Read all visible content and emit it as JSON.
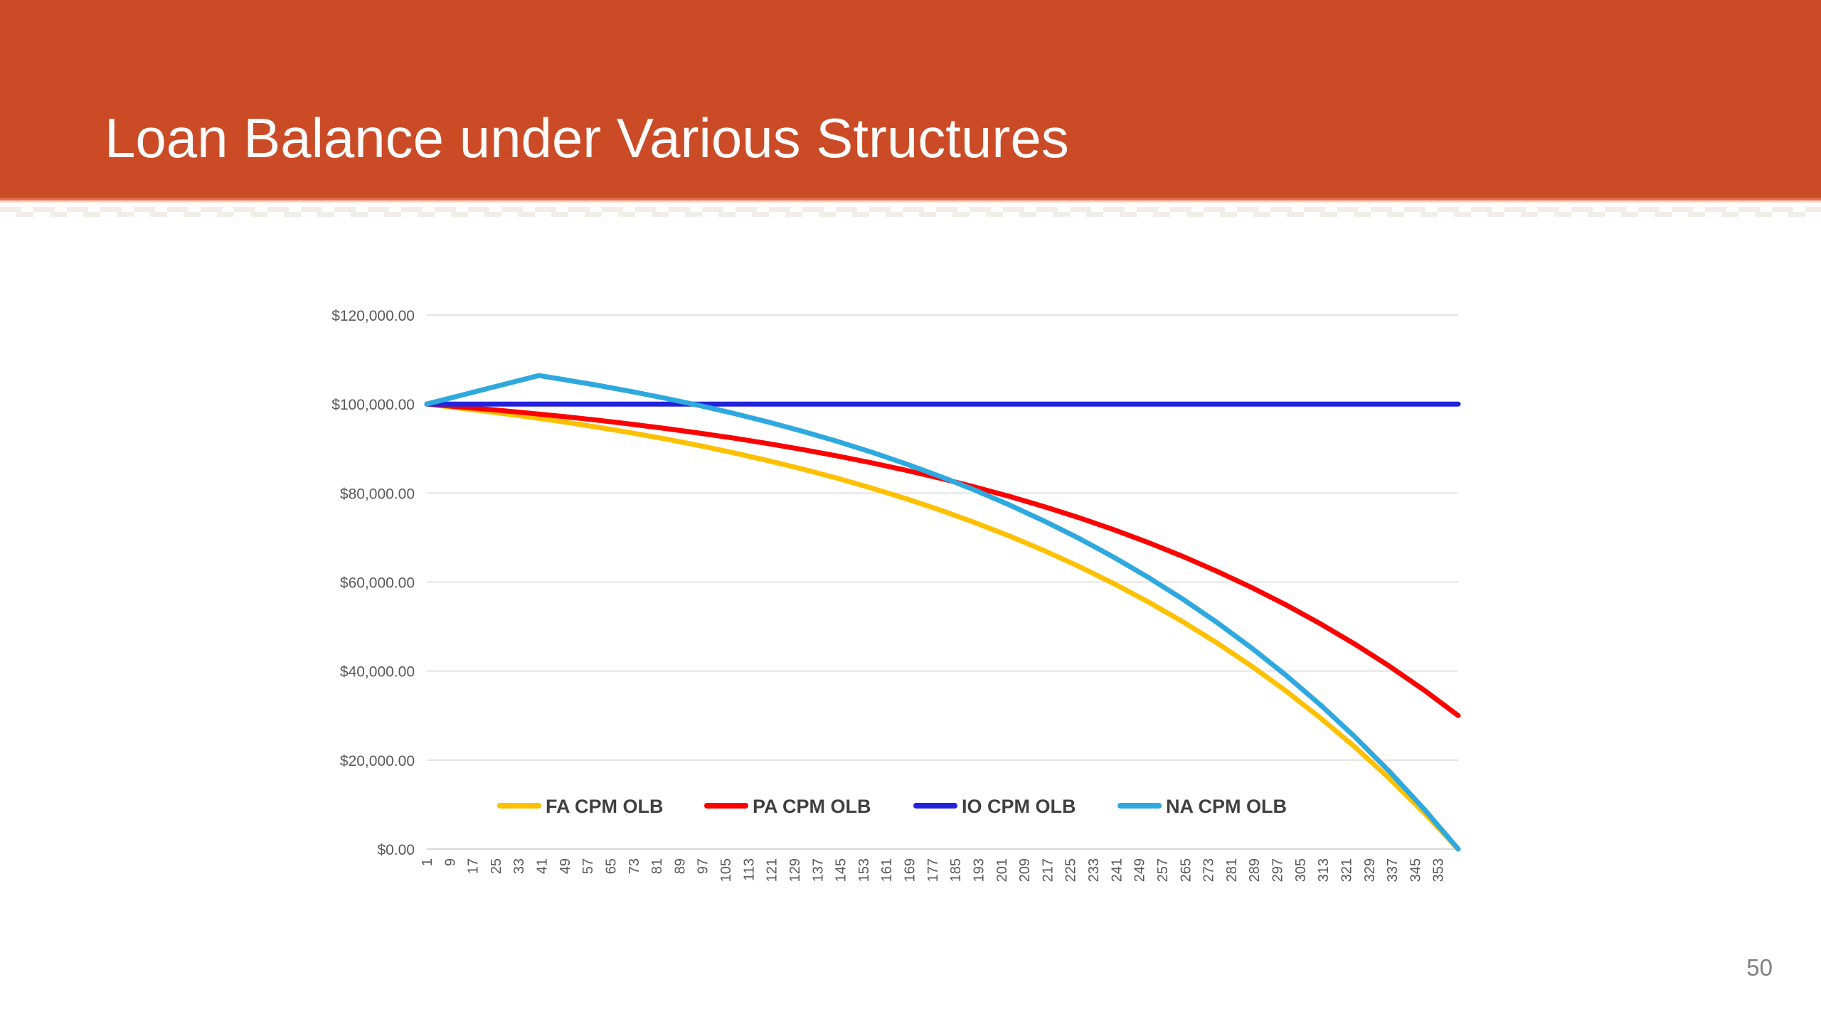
{
  "slide": {
    "title": "Loan Balance under Various Structures",
    "page_number": "50",
    "banner_color": "#CB4B26",
    "banner_accent_color": "#DF6C48"
  },
  "chart_data": {
    "type": "line",
    "title": "",
    "xlabel": "",
    "ylabel": "",
    "xlim": [
      1,
      360
    ],
    "ylim": [
      0,
      120000
    ],
    "grid": "horizontal-only",
    "gridline_color": "#E3E3E3",
    "axis_line_color": "#D8D8D8",
    "tick_label_color": "#595959",
    "legend_text_color": "#404040",
    "legend_position": "bottom-inside",
    "y_tick_labels": [
      "$120,000.00",
      "$100,000.00",
      "$80,000.00",
      "$60,000.00",
      "$40,000.00",
      "$20,000.00",
      "$0.00"
    ],
    "y_tick_values": [
      120000,
      100000,
      80000,
      60000,
      40000,
      20000,
      0
    ],
    "x_tick_labels": [
      1,
      9,
      17,
      25,
      33,
      41,
      49,
      57,
      65,
      73,
      81,
      89,
      97,
      105,
      113,
      121,
      129,
      137,
      145,
      153,
      161,
      169,
      177,
      185,
      193,
      201,
      209,
      217,
      225,
      233,
      241,
      249,
      257,
      265,
      273,
      281,
      289,
      297,
      305,
      313,
      321,
      329,
      337,
      345,
      353
    ],
    "months": [
      1,
      12,
      24,
      36,
      40,
      48,
      60,
      72,
      84,
      96,
      108,
      120,
      132,
      144,
      156,
      168,
      180,
      192,
      204,
      216,
      228,
      240,
      252,
      264,
      276,
      288,
      300,
      312,
      324,
      336,
      348,
      360
    ],
    "series": [
      {
        "name": "FA CPM OLB",
        "color": "#FFC000",
        "values": [
          100000,
          99122,
          98174,
          97150,
          96781,
          96043,
          94848,
          93556,
          92161,
          90653,
          89025,
          87266,
          85365,
          83312,
          81094,
          78698,
          76110,
          73313,
          70292,
          67029,
          63503,
          59694,
          55580,
          51135,
          46333,
          41145,
          35541,
          29487,
          22946,
          15880,
          8247,
          0
        ]
      },
      {
        "name": "PA CPM OLB",
        "color": "#FE0000",
        "values": [
          100000,
          99386,
          98722,
          98005,
          97747,
          97230,
          96394,
          95490,
          94513,
          93458,
          92318,
          91087,
          89757,
          88319,
          86767,
          85090,
          83278,
          81321,
          79206,
          76922,
          74453,
          71788,
          68907,
          65796,
          62435,
          58804,
          54881,
          50643,
          46064,
          41119,
          35776,
          30000
        ]
      },
      {
        "name": "IO CPM OLB",
        "color": "#2222DB",
        "values": [
          100000,
          100000,
          100000,
          100000,
          100000,
          100000,
          100000,
          100000,
          100000,
          100000,
          100000,
          100000,
          100000,
          100000,
          100000,
          100000,
          100000,
          100000,
          100000,
          100000,
          100000,
          100000,
          100000,
          100000,
          100000,
          100000,
          100000,
          100000,
          100000,
          100000,
          100000,
          100000
        ]
      },
      {
        "name": "NA CPM OLB",
        "color": "#2EA9DF",
        "values": [
          100000,
          101805,
          103774,
          105744,
          106400,
          105578,
          104264,
          102844,
          101310,
          99653,
          97863,
          95930,
          93841,
          91584,
          89146,
          86512,
          83667,
          80593,
          77272,
          73685,
          69810,
          65624,
          61101,
          56215,
          50936,
          45233,
          39072,
          32417,
          25228,
          17461,
          9070,
          0
        ]
      }
    ]
  }
}
